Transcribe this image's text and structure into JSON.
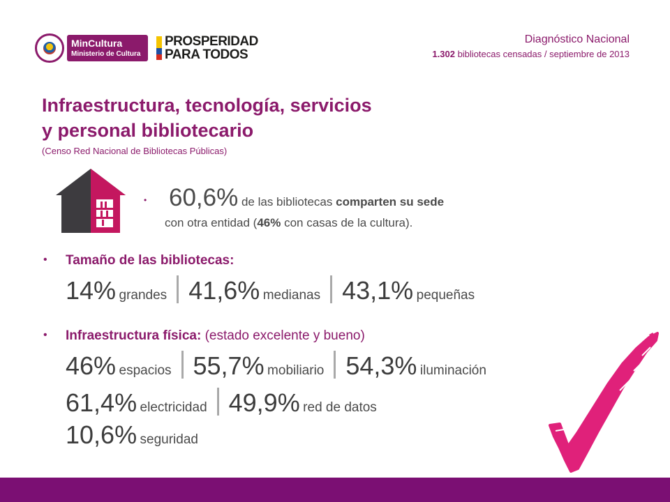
{
  "logos": {
    "mincultura_line1": "MinCultura",
    "mincultura_line2": "Ministerio de Cultura",
    "prosperidad_line1": "PROSPERIDAD",
    "prosperidad_line2": "PARA TODOS"
  },
  "header": {
    "title": "Diagnóstico Nacional",
    "count": "1.302",
    "subtitle_rest": " bibliotecas censadas / septiembre de 2013"
  },
  "title": {
    "line1": "Infraestructura, tecnología, servicios",
    "line2": "y personal bibliotecario",
    "source": "(Censo Red Nacional de Bibliotecas Públicas)"
  },
  "shared": {
    "bullet": "•",
    "pct": "60,6%",
    "text_a": " de las bibliotecas ",
    "text_b": "comparten su sede",
    "line2_a": "con otra entidad (",
    "line2_pct": "46%",
    "line2_b": " con casas de la cultura)."
  },
  "size": {
    "bullet": "•",
    "label": "Tamaño de las bibliotecas:",
    "items": [
      {
        "pct": "14%",
        "label": "grandes"
      },
      {
        "pct": "41,6%",
        "label": "medianas"
      },
      {
        "pct": "43,1%",
        "label": "pequeñas"
      }
    ]
  },
  "infra": {
    "bullet": "•",
    "label": "Infraestructura física:",
    "note": " (estado excelente y bueno)",
    "items": [
      {
        "pct": "46%",
        "label": "espacios"
      },
      {
        "pct": "55,7%",
        "label": "mobiliario"
      },
      {
        "pct": "54,3%",
        "label": "iluminación"
      },
      {
        "pct": "61,4%",
        "label": "electricidad"
      },
      {
        "pct": "49,9%",
        "label": "red de datos"
      },
      {
        "pct": "10,6%",
        "label": "seguridad"
      }
    ]
  },
  "colors": {
    "brand": "#8b1a6b",
    "footer": "#7b0f73",
    "house_dark": "#3d3b3f",
    "house_pink": "#c4175f",
    "check": "#e0217a"
  },
  "icons": [
    "house-bookshelf-icon",
    "checkmark-icon",
    "colombia-seal-icon"
  ]
}
